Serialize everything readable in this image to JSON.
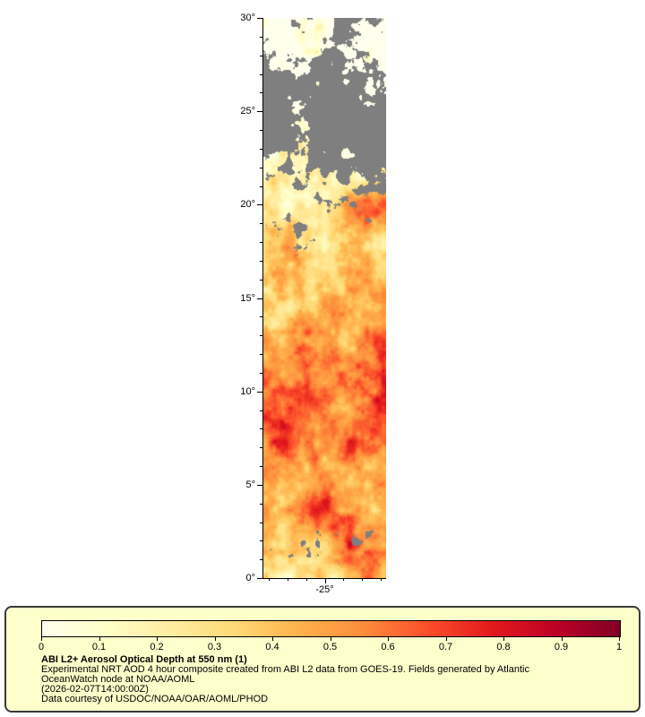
{
  "page": {
    "background": "#ffffff"
  },
  "map": {
    "lat_min": 0,
    "lat_max": 30,
    "lon_min": -28.3,
    "lon_max": -21.7,
    "missing_color": "#7f7f7f",
    "y_axis": {
      "major": [
        {
          "value": 30,
          "label": "30°"
        },
        {
          "value": 25,
          "label": "25°"
        },
        {
          "value": 20,
          "label": "20°"
        },
        {
          "value": 15,
          "label": "15°"
        },
        {
          "value": 10,
          "label": "10°"
        },
        {
          "value": 5,
          "label": "5°"
        },
        {
          "value": 0,
          "label": "0°"
        }
      ]
    },
    "x_axis": {
      "major": [
        {
          "value": -25,
          "label": "-25°"
        }
      ]
    }
  },
  "legend": {
    "box_background": "#ffffcc",
    "border_color": "#3a3a3a",
    "text_color": "#000000",
    "colorbar": {
      "stops": [
        "#ffffee",
        "#ffffc8",
        "#ffeda0",
        "#fed976",
        "#feb24c",
        "#fd8d3c",
        "#fc4e2a",
        "#e31a1c",
        "#bd0026",
        "#800026"
      ],
      "tick_labels": [
        "0",
        "0.1",
        "0.2",
        "0.3",
        "0.4",
        "0.5",
        "0.6",
        "0.7",
        "0.8",
        "0.9",
        "1"
      ]
    },
    "title": "ABI L2+ Aerosol Optical Depth at 550 nm (1)",
    "caption_line_1": "Experimental NRT AOD 4 hour composite created from ABI L2 data from GOES-19. Fields generated by Atlantic",
    "caption_line_2": "OceanWatch node at NOAA/AOML",
    "timestamp_line": "(2026-02-07T14:00:00Z)",
    "credit_line": "Data courtesy of USDOC/NOAA/OAR/AOML/PHOD"
  },
  "chart_data": {
    "type": "heatmap",
    "title": "ABI L2+ Aerosol Optical Depth at 550 nm (1)",
    "xlabel": "",
    "ylabel": "",
    "x_tick_labels": [
      "-25°"
    ],
    "y_tick_labels": [
      "0°",
      "5°",
      "10°",
      "15°",
      "20°",
      "25°",
      "30°"
    ],
    "x_range": [
      -28.3,
      -21.7
    ],
    "y_range": [
      0,
      30
    ],
    "value_range": [
      0,
      1
    ],
    "colorbar_ticks": [
      0,
      0.1,
      0.2,
      0.3,
      0.4,
      0.5,
      0.6,
      0.7,
      0.8,
      0.9,
      1
    ],
    "colormap_stops": [
      "#ffffee",
      "#ffffc8",
      "#ffeda0",
      "#fed976",
      "#feb24c",
      "#fd8d3c",
      "#fc4e2a",
      "#e31a1c",
      "#bd0026",
      "#800026"
    ],
    "missing_data_color": "#7f7f7f",
    "legend_position": "bottom",
    "description": "Vertical latitude strip (0°N-30°N, around 25°W) of aerosol optical depth: dense high-AOD dust (0.6-1.0, dark red) band roughly 5°N-13°N and a red plume near 17°N-21°N, moderate 0.2-0.5 values elsewhere, large gray missing/cloud region above about 22°N and scattered gray patches near 2°-3°N and 15°-19°N"
  }
}
